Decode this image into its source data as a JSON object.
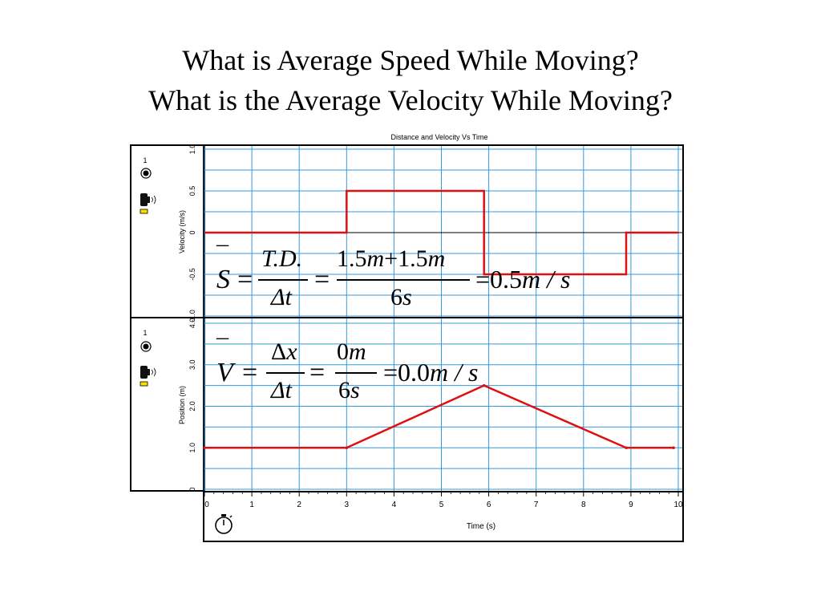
{
  "slide": {
    "title_line1": "What is Average Speed While Moving?",
    "title_line2": "What is the Average Velocity While Moving?"
  },
  "colors": {
    "trace": "#dd1111",
    "grid": "#3399dd",
    "axis": "#000000"
  },
  "icons": [
    "sensor-indicator-icon",
    "motion-sensor-icon",
    "stopwatch-icon"
  ],
  "chart_data": [
    {
      "type": "line",
      "title": "Distance and Velocity Vs Time",
      "xlabel": "Time (s)",
      "ylabel": "Velocity (m/s)",
      "xlim": [
        0,
        10
      ],
      "ylim": [
        -1.0,
        1.0
      ],
      "xticks": [
        "0",
        "1",
        "2",
        "3",
        "4",
        "5",
        "6",
        "7",
        "8",
        "9",
        "10"
      ],
      "yticks": [
        "1.0",
        "0.5",
        "0",
        "-0.5",
        "-1.0"
      ],
      "sensor_label": "1",
      "grid": true,
      "series": [
        {
          "x": [
            0,
            3,
            3,
            5.9,
            5.9,
            8.9,
            8.9,
            10
          ],
          "y": [
            0,
            0,
            0.5,
            0.5,
            -0.5,
            -0.5,
            0,
            0
          ]
        }
      ]
    },
    {
      "type": "line",
      "xlabel": "Time (s)",
      "ylabel": "Position (m)",
      "xlim": [
        0,
        10
      ],
      "ylim": [
        0,
        4.0
      ],
      "yticks": [
        "4.0",
        "3.0",
        "2.0",
        "1.0",
        "0"
      ],
      "sensor_label": "1",
      "grid": true,
      "series": [
        {
          "x": [
            0,
            3,
            5.9,
            8.9,
            9.9
          ],
          "y": [
            1.0,
            1.0,
            2.5,
            1.0,
            1.0
          ]
        }
      ]
    }
  ],
  "equations": {
    "speed": {
      "lhs": "S",
      "eq1": "=",
      "num1": "T.D.",
      "den1": "Δt",
      "eq2": "=",
      "num2_a": "1.5",
      "num2_b": "m",
      "num2_c": "+",
      "num2_d": "1.5",
      "num2_e": "m",
      "den2_a": "6",
      "den2_b": "s",
      "result_eq": "=",
      "result_num": "0.5",
      "result_unit": "m / s"
    },
    "velocity": {
      "lhs": "V",
      "eq1": "=",
      "num1_a": "Δ",
      "num1_b": "x",
      "den1": "Δt",
      "eq2": "=",
      "num2_a": "0",
      "num2_b": "m",
      "den2_a": "6",
      "den2_b": "s",
      "result_eq": "=",
      "result_num": "0.0",
      "result_unit": "m / s"
    }
  }
}
